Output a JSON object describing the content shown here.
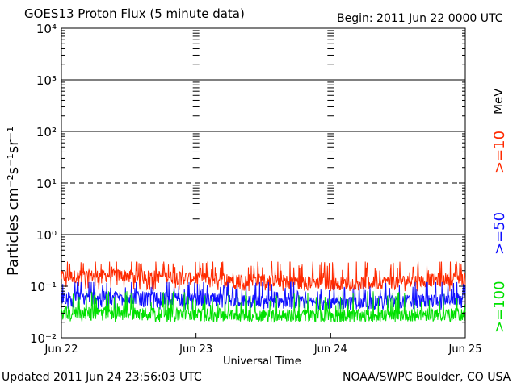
{
  "header": {
    "title": "GOES13 Proton Flux (5 minute data)",
    "begin": "Begin: 2011 Jun 22 0000 UTC"
  },
  "footer": {
    "updated": "Updated 2011 Jun 24 23:56:03 UTC",
    "source": "NOAA/SWPC Boulder, CO USA"
  },
  "chart_data": {
    "type": "line",
    "title": "GOES13 Proton Flux (5 minute data)",
    "xlabel": "Universal Time",
    "ylabel": "Particles cm⁻²s⁻¹sr⁻¹",
    "units_label": "MeV",
    "y_scale": "log",
    "ylim": [
      0.01,
      10000
    ],
    "xlim": [
      "2011-06-22",
      "2011-06-25"
    ],
    "x_ticks": [
      {
        "value": "2011-06-22",
        "label": "Jun 22"
      },
      {
        "value": "2011-06-23",
        "label": "Jun 23"
      },
      {
        "value": "2011-06-24",
        "label": "Jun 24"
      },
      {
        "value": "2011-06-25",
        "label": "Jun 25"
      }
    ],
    "y_ticks": [
      {
        "value": 0.01,
        "label": "10⁻²"
      },
      {
        "value": 0.1,
        "label": "10⁻¹"
      },
      {
        "value": 1,
        "label": "10⁰"
      },
      {
        "value": 10,
        "label": "10¹"
      },
      {
        "value": 100,
        "label": "10²"
      },
      {
        "value": 1000,
        "label": "10³"
      },
      {
        "value": 10000,
        "label": "10⁴"
      }
    ],
    "gridlines": [
      {
        "value": 1,
        "style": "solid"
      },
      {
        "value": 10,
        "style": "dashed"
      },
      {
        "value": 100,
        "style": "solid"
      },
      {
        "value": 1000,
        "style": "solid"
      }
    ],
    "series": [
      {
        "name": ">=10",
        "color": "#ff2a00",
        "baseline": 0.1,
        "low": 0.08,
        "high": 0.3,
        "times": [
          "Jun 22 00:00",
          "Jun 22 12:00",
          "Jun 23 00:00",
          "Jun 23 12:00",
          "Jun 24 00:00",
          "Jun 24 12:00",
          "Jun 25 00:00"
        ],
        "values": [
          0.15,
          0.16,
          0.14,
          0.13,
          0.11,
          0.12,
          0.14
        ]
      },
      {
        "name": ">=50",
        "color": "#1010ff",
        "baseline": 0.05,
        "low": 0.035,
        "high": 0.12,
        "times": [
          "Jun 22 00:00",
          "Jun 22 12:00",
          "Jun 23 00:00",
          "Jun 23 12:00",
          "Jun 24 00:00",
          "Jun 24 12:00",
          "Jun 25 00:00"
        ],
        "values": [
          0.06,
          0.06,
          0.055,
          0.05,
          0.045,
          0.05,
          0.055
        ]
      },
      {
        "name": ">=100",
        "color": "#00e000",
        "baseline": 0.025,
        "low": 0.02,
        "high": 0.08,
        "times": [
          "Jun 22 00:00",
          "Jun 22 12:00",
          "Jun 23 00:00",
          "Jun 23 12:00",
          "Jun 24 00:00",
          "Jun 24 12:00",
          "Jun 25 00:00"
        ],
        "values": [
          0.03,
          0.03,
          0.028,
          0.027,
          0.026,
          0.027,
          0.028
        ]
      }
    ],
    "legend_placement": "right"
  }
}
